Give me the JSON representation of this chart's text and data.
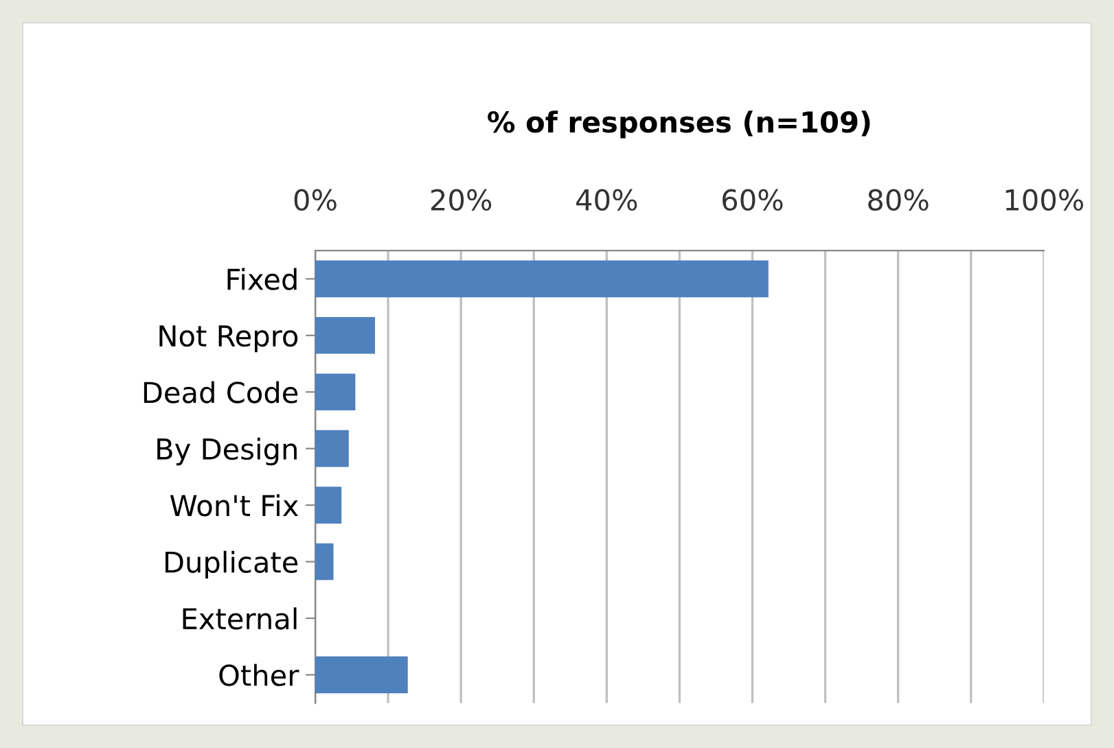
{
  "chart_data": {
    "type": "bar",
    "orientation": "horizontal",
    "title": "% of responses (n=109)",
    "categories": [
      "Fixed",
      "Not Repro",
      "Dead Code",
      "By Design",
      "Won't Fix",
      "Duplicate",
      "External",
      "Other"
    ],
    "values": [
      62.2,
      8.2,
      5.5,
      4.6,
      3.6,
      2.5,
      0,
      12.7
    ],
    "color": "#4f81bd",
    "xlim": [
      0,
      100
    ],
    "xticks": [
      {
        "value": 0,
        "label": "0%"
      },
      {
        "value": 10,
        "label": null
      },
      {
        "value": 20,
        "label": "20%"
      },
      {
        "value": 30,
        "label": null
      },
      {
        "value": 40,
        "label": "40%"
      },
      {
        "value": 50,
        "label": null
      },
      {
        "value": 60,
        "label": "60%"
      },
      {
        "value": 70,
        "label": null
      },
      {
        "value": 80,
        "label": "80%"
      },
      {
        "value": 90,
        "label": null
      },
      {
        "value": 100,
        "label": "100%"
      }
    ],
    "grid": "x",
    "legend": false
  }
}
